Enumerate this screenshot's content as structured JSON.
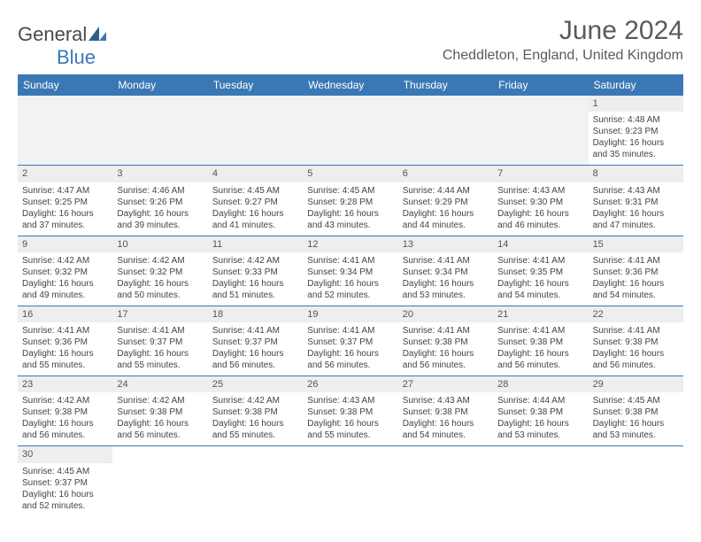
{
  "logo": {
    "text1": "General",
    "text2": "Blue"
  },
  "title": "June 2024",
  "location": "Cheddleton, England, United Kingdom",
  "colors": {
    "header_bg": "#3a78b5",
    "header_text": "#ffffff",
    "daynum_bg": "#eeeeee",
    "border": "#3a78b5",
    "body_text": "#444444"
  },
  "day_names": [
    "Sunday",
    "Monday",
    "Tuesday",
    "Wednesday",
    "Thursday",
    "Friday",
    "Saturday"
  ],
  "weeks": [
    [
      null,
      null,
      null,
      null,
      null,
      null,
      {
        "n": "1",
        "sr": "Sunrise: 4:48 AM",
        "ss": "Sunset: 9:23 PM",
        "d1": "Daylight: 16 hours",
        "d2": "and 35 minutes."
      }
    ],
    [
      {
        "n": "2",
        "sr": "Sunrise: 4:47 AM",
        "ss": "Sunset: 9:25 PM",
        "d1": "Daylight: 16 hours",
        "d2": "and 37 minutes."
      },
      {
        "n": "3",
        "sr": "Sunrise: 4:46 AM",
        "ss": "Sunset: 9:26 PM",
        "d1": "Daylight: 16 hours",
        "d2": "and 39 minutes."
      },
      {
        "n": "4",
        "sr": "Sunrise: 4:45 AM",
        "ss": "Sunset: 9:27 PM",
        "d1": "Daylight: 16 hours",
        "d2": "and 41 minutes."
      },
      {
        "n": "5",
        "sr": "Sunrise: 4:45 AM",
        "ss": "Sunset: 9:28 PM",
        "d1": "Daylight: 16 hours",
        "d2": "and 43 minutes."
      },
      {
        "n": "6",
        "sr": "Sunrise: 4:44 AM",
        "ss": "Sunset: 9:29 PM",
        "d1": "Daylight: 16 hours",
        "d2": "and 44 minutes."
      },
      {
        "n": "7",
        "sr": "Sunrise: 4:43 AM",
        "ss": "Sunset: 9:30 PM",
        "d1": "Daylight: 16 hours",
        "d2": "and 46 minutes."
      },
      {
        "n": "8",
        "sr": "Sunrise: 4:43 AM",
        "ss": "Sunset: 9:31 PM",
        "d1": "Daylight: 16 hours",
        "d2": "and 47 minutes."
      }
    ],
    [
      {
        "n": "9",
        "sr": "Sunrise: 4:42 AM",
        "ss": "Sunset: 9:32 PM",
        "d1": "Daylight: 16 hours",
        "d2": "and 49 minutes."
      },
      {
        "n": "10",
        "sr": "Sunrise: 4:42 AM",
        "ss": "Sunset: 9:32 PM",
        "d1": "Daylight: 16 hours",
        "d2": "and 50 minutes."
      },
      {
        "n": "11",
        "sr": "Sunrise: 4:42 AM",
        "ss": "Sunset: 9:33 PM",
        "d1": "Daylight: 16 hours",
        "d2": "and 51 minutes."
      },
      {
        "n": "12",
        "sr": "Sunrise: 4:41 AM",
        "ss": "Sunset: 9:34 PM",
        "d1": "Daylight: 16 hours",
        "d2": "and 52 minutes."
      },
      {
        "n": "13",
        "sr": "Sunrise: 4:41 AM",
        "ss": "Sunset: 9:34 PM",
        "d1": "Daylight: 16 hours",
        "d2": "and 53 minutes."
      },
      {
        "n": "14",
        "sr": "Sunrise: 4:41 AM",
        "ss": "Sunset: 9:35 PM",
        "d1": "Daylight: 16 hours",
        "d2": "and 54 minutes."
      },
      {
        "n": "15",
        "sr": "Sunrise: 4:41 AM",
        "ss": "Sunset: 9:36 PM",
        "d1": "Daylight: 16 hours",
        "d2": "and 54 minutes."
      }
    ],
    [
      {
        "n": "16",
        "sr": "Sunrise: 4:41 AM",
        "ss": "Sunset: 9:36 PM",
        "d1": "Daylight: 16 hours",
        "d2": "and 55 minutes."
      },
      {
        "n": "17",
        "sr": "Sunrise: 4:41 AM",
        "ss": "Sunset: 9:37 PM",
        "d1": "Daylight: 16 hours",
        "d2": "and 55 minutes."
      },
      {
        "n": "18",
        "sr": "Sunrise: 4:41 AM",
        "ss": "Sunset: 9:37 PM",
        "d1": "Daylight: 16 hours",
        "d2": "and 56 minutes."
      },
      {
        "n": "19",
        "sr": "Sunrise: 4:41 AM",
        "ss": "Sunset: 9:37 PM",
        "d1": "Daylight: 16 hours",
        "d2": "and 56 minutes."
      },
      {
        "n": "20",
        "sr": "Sunrise: 4:41 AM",
        "ss": "Sunset: 9:38 PM",
        "d1": "Daylight: 16 hours",
        "d2": "and 56 minutes."
      },
      {
        "n": "21",
        "sr": "Sunrise: 4:41 AM",
        "ss": "Sunset: 9:38 PM",
        "d1": "Daylight: 16 hours",
        "d2": "and 56 minutes."
      },
      {
        "n": "22",
        "sr": "Sunrise: 4:41 AM",
        "ss": "Sunset: 9:38 PM",
        "d1": "Daylight: 16 hours",
        "d2": "and 56 minutes."
      }
    ],
    [
      {
        "n": "23",
        "sr": "Sunrise: 4:42 AM",
        "ss": "Sunset: 9:38 PM",
        "d1": "Daylight: 16 hours",
        "d2": "and 56 minutes."
      },
      {
        "n": "24",
        "sr": "Sunrise: 4:42 AM",
        "ss": "Sunset: 9:38 PM",
        "d1": "Daylight: 16 hours",
        "d2": "and 56 minutes."
      },
      {
        "n": "25",
        "sr": "Sunrise: 4:42 AM",
        "ss": "Sunset: 9:38 PM",
        "d1": "Daylight: 16 hours",
        "d2": "and 55 minutes."
      },
      {
        "n": "26",
        "sr": "Sunrise: 4:43 AM",
        "ss": "Sunset: 9:38 PM",
        "d1": "Daylight: 16 hours",
        "d2": "and 55 minutes."
      },
      {
        "n": "27",
        "sr": "Sunrise: 4:43 AM",
        "ss": "Sunset: 9:38 PM",
        "d1": "Daylight: 16 hours",
        "d2": "and 54 minutes."
      },
      {
        "n": "28",
        "sr": "Sunrise: 4:44 AM",
        "ss": "Sunset: 9:38 PM",
        "d1": "Daylight: 16 hours",
        "d2": "and 53 minutes."
      },
      {
        "n": "29",
        "sr": "Sunrise: 4:45 AM",
        "ss": "Sunset: 9:38 PM",
        "d1": "Daylight: 16 hours",
        "d2": "and 53 minutes."
      }
    ],
    [
      {
        "n": "30",
        "sr": "Sunrise: 4:45 AM",
        "ss": "Sunset: 9:37 PM",
        "d1": "Daylight: 16 hours",
        "d2": "and 52 minutes."
      },
      null,
      null,
      null,
      null,
      null,
      null
    ]
  ]
}
